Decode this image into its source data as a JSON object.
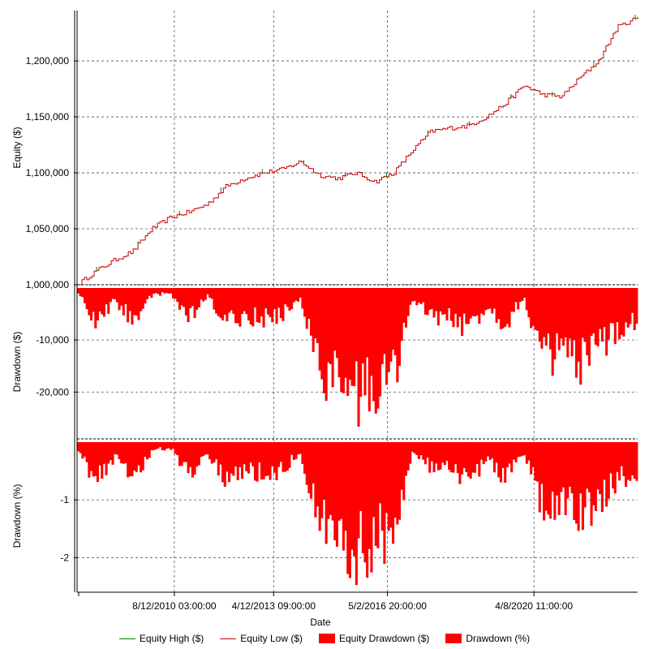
{
  "chart_data": [
    {
      "panel": "equity",
      "type": "line",
      "ylabel": "Equity ($)",
      "ylim": [
        1000000,
        1245000
      ],
      "yticks": [
        {
          "value": 1000000,
          "label": "1,000,000"
        },
        {
          "value": 1050000,
          "label": "1,050,000"
        },
        {
          "value": 1100000,
          "label": "1,100,000"
        },
        {
          "value": 1150000,
          "label": "1,150,000"
        },
        {
          "value": 1200000,
          "label": "1,200,000"
        }
      ],
      "grid": true,
      "series": [
        {
          "name": "Equity High ($)",
          "color": "#008000"
        },
        {
          "name": "Equity Low ($)",
          "color": "#cc0000"
        }
      ],
      "x_values": [
        "2008-01-01",
        "2008-07-01",
        "2009-01-01",
        "2009-07-01",
        "2010-01-01",
        "2010-07-01",
        "2011-01-01",
        "2011-07-01",
        "2012-01-01",
        "2012-07-01",
        "2013-01-01",
        "2013-07-01",
        "2014-01-01",
        "2014-07-01",
        "2015-01-01",
        "2015-07-01",
        "2016-01-01",
        "2016-07-01",
        "2017-01-01",
        "2017-07-01",
        "2018-01-01",
        "2018-07-01",
        "2019-01-01",
        "2019-07-01",
        "2020-01-01",
        "2020-07-01",
        "2021-01-01",
        "2021-07-01",
        "2022-01-01",
        "2022-07-01",
        "2023-01-01"
      ],
      "values": [
        1000000,
        1012000,
        1022000,
        1030000,
        1050000,
        1060000,
        1065000,
        1072000,
        1088000,
        1095000,
        1100000,
        1103000,
        1110000,
        1098000,
        1095000,
        1100000,
        1092000,
        1100000,
        1120000,
        1137000,
        1140000,
        1142000,
        1150000,
        1162000,
        1178000,
        1170000,
        1168000,
        1185000,
        1200000,
        1230000,
        1238000
      ]
    },
    {
      "panel": "drawdown_dollars",
      "type": "area",
      "ylabel": "Drawdown ($)",
      "ylim": [
        -29000,
        0
      ],
      "yticks": [
        {
          "value": -10000,
          "label": "-10,000"
        },
        {
          "value": -20000,
          "label": "-20,000"
        }
      ],
      "grid": true,
      "series": [
        {
          "name": "Equity Drawdown ($)",
          "color": "#ff0000"
        }
      ],
      "x_values": [
        "2008-01-01",
        "2008-07-01",
        "2009-01-01",
        "2009-07-01",
        "2010-01-01",
        "2010-07-01",
        "2011-01-01",
        "2011-07-01",
        "2012-01-01",
        "2012-07-01",
        "2013-01-01",
        "2013-07-01",
        "2014-01-01",
        "2014-07-01",
        "2015-01-01",
        "2015-07-01",
        "2016-01-01",
        "2016-07-01",
        "2017-01-01",
        "2017-07-01",
        "2018-01-01",
        "2018-07-01",
        "2019-01-01",
        "2019-07-01",
        "2020-01-01",
        "2020-07-01",
        "2021-01-01",
        "2021-07-01",
        "2022-01-01",
        "2022-07-01",
        "2023-01-01"
      ],
      "values": [
        -1000,
        -8000,
        -3000,
        -7000,
        -2000,
        -1000,
        -7000,
        -2000,
        -8000,
        -6000,
        -7000,
        -6000,
        -2000,
        -18000,
        -21000,
        -24000,
        -22000,
        -19000,
        -3000,
        -6000,
        -7000,
        -9000,
        -4000,
        -8000,
        -2000,
        -16000,
        -14000,
        -18000,
        -14000,
        -9000,
        -7000
      ]
    },
    {
      "panel": "drawdown_percent",
      "type": "area",
      "ylabel": "Drawdown (%)",
      "ylim": [
        -2.6,
        0
      ],
      "yticks": [
        {
          "value": -1,
          "label": "-1"
        },
        {
          "value": -2,
          "label": "-2"
        }
      ],
      "grid": true,
      "series": [
        {
          "name": "Drawdown (%)",
          "color": "#ff0000"
        }
      ],
      "x_values": [
        "2008-01-01",
        "2008-07-01",
        "2009-01-01",
        "2009-07-01",
        "2010-01-01",
        "2010-07-01",
        "2011-01-01",
        "2011-07-01",
        "2012-01-01",
        "2012-07-01",
        "2013-01-01",
        "2013-07-01",
        "2014-01-01",
        "2014-07-01",
        "2015-01-01",
        "2015-07-01",
        "2016-01-01",
        "2016-07-01",
        "2017-01-01",
        "2017-07-01",
        "2018-01-01",
        "2018-07-01",
        "2019-01-01",
        "2019-07-01",
        "2020-01-01",
        "2020-07-01",
        "2021-01-01",
        "2021-07-01",
        "2022-01-01",
        "2022-07-01",
        "2023-01-01"
      ],
      "values": [
        -0.1,
        -0.8,
        -0.3,
        -0.7,
        -0.2,
        -0.1,
        -0.65,
        -0.2,
        -0.75,
        -0.55,
        -0.65,
        -0.55,
        -0.2,
        -1.6,
        -1.9,
        -2.2,
        -2.0,
        -1.7,
        -0.25,
        -0.5,
        -0.6,
        -0.8,
        -0.35,
        -0.7,
        -0.2,
        -1.35,
        -1.2,
        -1.5,
        -1.2,
        -0.8,
        -0.6
      ]
    }
  ],
  "x_axis": {
    "xlabel": "Date",
    "xlim": [
      "2008-01-01",
      "2023-01-20"
    ],
    "ticks": [
      {
        "value": "2010-08-12",
        "label": "8/12/2010 03:00:00"
      },
      {
        "value": "2013-04-12",
        "label": "4/12/2013 09:00:00"
      },
      {
        "value": "2016-05-02",
        "label": "5/2/2016 20:00:00"
      },
      {
        "value": "2020-04-08",
        "label": "4/8/2020 11:00:00"
      }
    ]
  },
  "legend": {
    "position": "bottom",
    "items": [
      {
        "label": "Equity High ($)",
        "kind": "line",
        "color": "#008000"
      },
      {
        "label": "Equity Low ($)",
        "kind": "line",
        "color": "#cc0000"
      },
      {
        "label": "Equity Drawdown ($)",
        "kind": "box",
        "color": "#ff0000"
      },
      {
        "label": "Drawdown (%)",
        "kind": "box",
        "color": "#ff0000"
      }
    ]
  }
}
